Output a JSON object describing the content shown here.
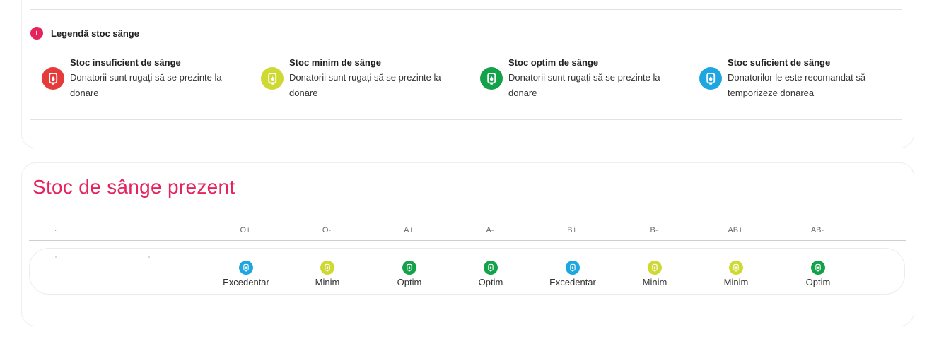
{
  "legend": {
    "title": "Legendă stoc sânge",
    "info_icon": "info-icon",
    "items": [
      {
        "title": "Stoc insuficient de sânge",
        "desc": "Donatorii sunt rugați să se prezinte la donare",
        "color": "#e53b3b",
        "icon": "blood-bag-icon"
      },
      {
        "title": "Stoc minim de sânge",
        "desc": "Donatorii sunt rugați să se prezinte la donare",
        "color": "#cfd934",
        "icon": "blood-bag-icon"
      },
      {
        "title": "Stoc optim de sânge",
        "desc": "Donatorii sunt rugați să se prezinte la donare",
        "color": "#13a24a",
        "icon": "blood-bag-icon"
      },
      {
        "title": "Stoc suficient de sânge",
        "desc": "Donatorilor le este recomandat să temporizeze donarea",
        "color": "#1ea6e0",
        "icon": "blood-bag-icon"
      }
    ]
  },
  "stock": {
    "title": "Stoc de sânge prezent",
    "columns": [
      "O+",
      "O-",
      "A+",
      "A-",
      "B+",
      "B-",
      "AB+",
      "AB-"
    ],
    "statuses": [
      {
        "label": "Excedentar",
        "color": "#1ea6e0"
      },
      {
        "label": "Minim",
        "color": "#cfd934"
      },
      {
        "label": "Optim",
        "color": "#13a24a"
      },
      {
        "label": "Optim",
        "color": "#13a24a"
      },
      {
        "label": "Excedentar",
        "color": "#1ea6e0"
      },
      {
        "label": "Minim",
        "color": "#cfd934"
      },
      {
        "label": "Minim",
        "color": "#cfd934"
      },
      {
        "label": "Optim",
        "color": "#13a24a"
      }
    ]
  }
}
